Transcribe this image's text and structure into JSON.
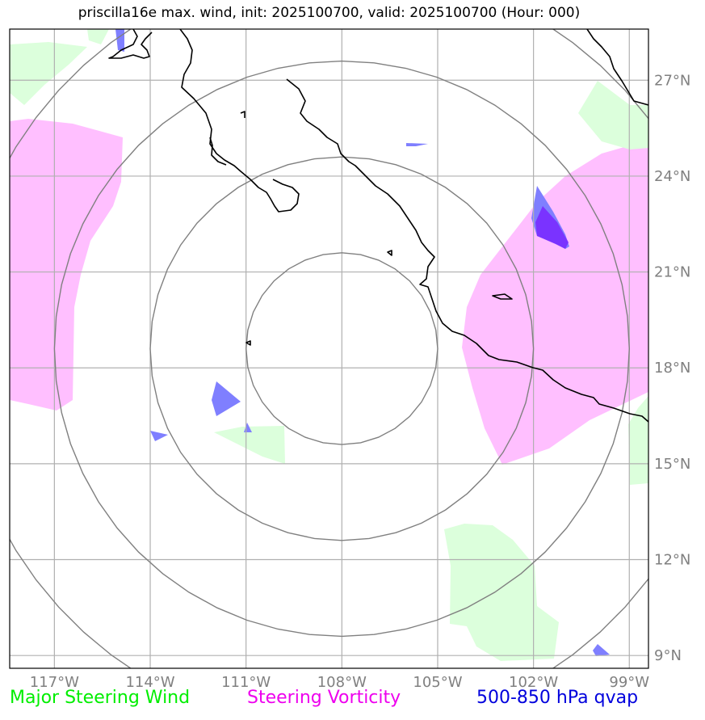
{
  "title": "priscilla16e max. wind, init: 2025100700, valid: 2025100700 (Hour: 000)",
  "map": {
    "lon_range": [
      -118.4,
      -98.4
    ],
    "lat_range": [
      8.6,
      28.6
    ],
    "lon_ticks": [
      {
        "value": -117,
        "label": "117°W"
      },
      {
        "value": -114,
        "label": "114°W"
      },
      {
        "value": -111,
        "label": "111°W"
      },
      {
        "value": -108,
        "label": "108°W"
      },
      {
        "value": -105,
        "label": "105°W"
      },
      {
        "value": -102,
        "label": "102°W"
      },
      {
        "value": -99,
        "label": "99°W"
      }
    ],
    "lat_ticks": [
      {
        "value": 9,
        "label": "9°N"
      },
      {
        "value": 12,
        "label": "12°N"
      },
      {
        "value": 15,
        "label": "15°N"
      },
      {
        "value": 18,
        "label": "18°N"
      },
      {
        "value": 21,
        "label": "21°N"
      },
      {
        "value": 24,
        "label": "24°N"
      },
      {
        "value": 27,
        "label": "27°N"
      }
    ],
    "grid": true,
    "range_rings": {
      "center": [
        -108,
        18.6
      ],
      "radii_deg": [
        3,
        6,
        9,
        12
      ]
    },
    "colors": {
      "steering_wind": "#ccffcc",
      "steering_vorticity": "#ffb3ff",
      "qvap_light": "#7f7fff",
      "qvap_dark": "#7a33ff",
      "grid": "#b0b0b0",
      "rings": "#808080",
      "coast": "#000000"
    }
  },
  "legend": {
    "steering_wind": {
      "label": "Major Steering Wind",
      "color": "#00ee00"
    },
    "steering_vorticity": {
      "label": "Steering Vorticity",
      "color": "#ee00ee"
    },
    "qvap": {
      "label": "500-850 hPa qvap",
      "color": "#0000dd"
    }
  }
}
